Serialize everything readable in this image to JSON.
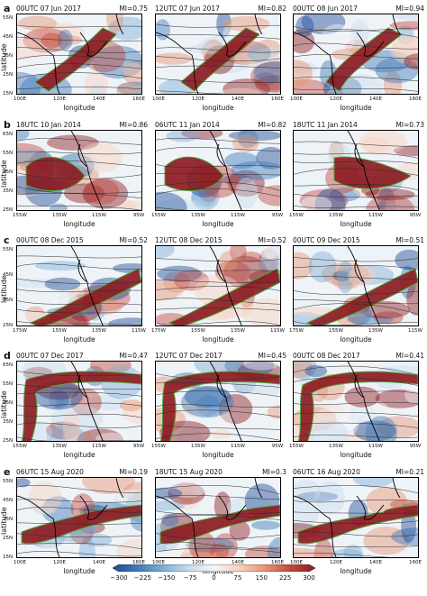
{
  "colors": {
    "cbar": [
      "#1f4e96",
      "#3f7bb8",
      "#7fb0d6",
      "#c7ddee",
      "#f3f5f7",
      "#f9d2bf",
      "#e89574",
      "#c44a3f",
      "#8c1c22"
    ],
    "coast": "#000000",
    "ar_outline": "#4fa83a",
    "contour": "#2b2b2b"
  },
  "y_axis_label": "latitude",
  "x_axis_label": "longitude",
  "rows": [
    {
      "label": "a",
      "xticks": [
        "100E",
        "120E",
        "140E",
        "160E"
      ],
      "yticks": [
        "55N",
        "45N",
        "35N",
        "25N",
        "15N"
      ],
      "panels": [
        {
          "time": "00UTC 07 Jun 2017",
          "mi": "MI=0.75"
        },
        {
          "time": "12UTC 07 Jun 2017",
          "mi": "MI=0.82"
        },
        {
          "time": "00UTC 08 Jun 2017",
          "mi": "MI=0.94"
        }
      ]
    },
    {
      "label": "b",
      "xticks": [
        "155W",
        "135W",
        "115W",
        "95W"
      ],
      "yticks": [
        "65N",
        "55N",
        "45N",
        "35N",
        "25N"
      ],
      "panels": [
        {
          "time": "18UTC 10 Jan 2014",
          "mi": "MI=0.86"
        },
        {
          "time": "06UTC 11 Jan 2014",
          "mi": "MI=0.82"
        },
        {
          "time": "18UTC 11 Jan 2014",
          "mi": "MI=0.73"
        }
      ]
    },
    {
      "label": "c",
      "xticks": [
        "175W",
        "155W",
        "135W",
        "115W"
      ],
      "yticks": [
        "55N",
        "45N",
        "35N",
        "25N"
      ],
      "panels": [
        {
          "time": "00UTC 08 Dec 2015",
          "mi": "MI=0.52"
        },
        {
          "time": "12UTC 08 Dec 2015",
          "mi": "MI=0.52"
        },
        {
          "time": "00UTC 09 Dec 2015",
          "mi": "MI=0.51"
        }
      ]
    },
    {
      "label": "d",
      "xticks": [
        "155W",
        "135W",
        "115W",
        "95W"
      ],
      "yticks": [
        "65N",
        "55N",
        "45N",
        "35N",
        "25N"
      ],
      "panels": [
        {
          "time": "00UTC 07 Dec 2017",
          "mi": "MI=0.47"
        },
        {
          "time": "12UTC 07 Dec 2017",
          "mi": "MI=0.45"
        },
        {
          "time": "00UTC 08 Dec 2017",
          "mi": "MI=0.41"
        }
      ]
    },
    {
      "label": "e",
      "xticks": [
        "100E",
        "120E",
        "140E",
        "160E"
      ],
      "yticks": [
        "55N",
        "45N",
        "35N",
        "25N",
        "15N"
      ],
      "panels": [
        {
          "time": "06UTC 15 Aug 2020",
          "mi": "MI=0.19"
        },
        {
          "time": "18UTC 15 Aug 2020",
          "mi": "MI=0.3"
        },
        {
          "time": "06UTC 16 Aug 2020",
          "mi": "MI=0.21"
        }
      ]
    }
  ],
  "colorbar_ticks": [
    "−300",
    "−225",
    "−150",
    "−75",
    "0",
    "75",
    "150",
    "225",
    "300"
  ]
}
